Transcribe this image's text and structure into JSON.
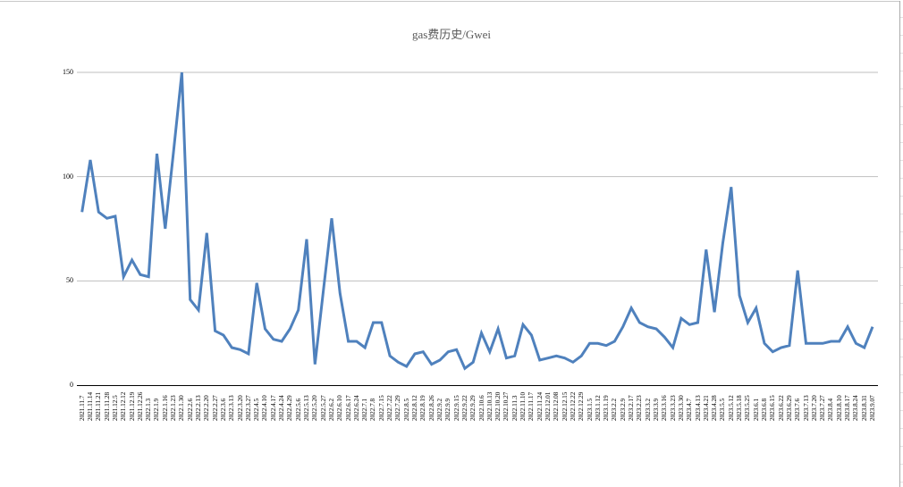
{
  "chart_data": {
    "type": "line",
    "title": "gas费历史/Gwei",
    "xlabel": "",
    "ylabel": "",
    "ylim": [
      0,
      150
    ],
    "yticks": [
      0,
      50,
      100,
      150
    ],
    "grid": true,
    "legend": "none",
    "line_color": "#4f81bd",
    "categories": [
      "2021.11.7",
      "2021.11.14",
      "2021.11.21",
      "2021.11.28",
      "2021.12.5",
      "2021.12.12",
      "2021.12.19",
      "2021.12.26",
      "2022.1.3",
      "2022.1.9",
      "2022.1.16",
      "2022.1.23",
      "2022.1.30",
      "2022.2.6",
      "2022.2.13",
      "2022.2.20",
      "2022.2.27",
      "2022.3.6",
      "2022.3.13",
      "2022.3.20",
      "2022.3.27",
      "2022.4.5",
      "2022.4.10",
      "2022.4.17",
      "2022.4.24",
      "2022.4.29",
      "2022.5.6",
      "2022.5.13",
      "2022.5.20",
      "2022.5.27",
      "2022.6.2",
      "2022.6.10",
      "2022.6.17",
      "2022.6.24",
      "2022.7.1",
      "2022.7.8",
      "2022.7.15",
      "2022.7.22",
      "2022.7.29",
      "2022.8.5",
      "2022.8.12",
      "2022.8.19",
      "2022.8.26",
      "2022.9.2",
      "2022.9.9",
      "2022.9.15",
      "2022.9.22",
      "2022.9.29",
      "2022.10.6",
      "2022.10.13",
      "2022.10.20",
      "2022.10.27",
      "2022.11.3",
      "2022.11.10",
      "2022.11.17",
      "2022.11.24",
      "2022.12.01",
      "2022.12.08",
      "2022.12.15",
      "2022.12.22",
      "2022.12.29",
      "2023.1.5",
      "2023.1.12",
      "2023.1.19",
      "2023.2.2",
      "2023.2.9",
      "2023.2.17",
      "2023.2.23",
      "2023.3.2",
      "2023.3.9",
      "2023.3.16",
      "2023.3.23",
      "2023.3.30",
      "2023.4.7",
      "2023.4.13",
      "2023.4.21",
      "2023.4.28",
      "2023.5.5",
      "2023.5.12",
      "2023.5.18",
      "2023.5.25",
      "2023.6.1",
      "2023.6.8",
      "2023.6.15",
      "2023.6.22",
      "2023.6.29",
      "2023.7.6",
      "2023.7.13",
      "2023.7.20",
      "2023.7.27",
      "2023.8.4",
      "2023.8.10",
      "2023.8.17",
      "2023.8.24",
      "2023.8.31",
      "2023.9.07"
    ],
    "series": [
      {
        "name": "gas费",
        "values": [
          83,
          108,
          83,
          80,
          81,
          52,
          60,
          53,
          52,
          111,
          75,
          112,
          150,
          41,
          36,
          73,
          26,
          24,
          18,
          17,
          15,
          49,
          27,
          22,
          21,
          27,
          36,
          70,
          10,
          45,
          80,
          44,
          21,
          21,
          18,
          30,
          30,
          14,
          11,
          9,
          15,
          16,
          10,
          12,
          16,
          17,
          8,
          11,
          25,
          16,
          27,
          13,
          14,
          29,
          24,
          12,
          13,
          14,
          13,
          11,
          14,
          20,
          20,
          19,
          21,
          28,
          37,
          30,
          28,
          27,
          23,
          18,
          32,
          29,
          30,
          65,
          35,
          68,
          95,
          43,
          30,
          37,
          20,
          16,
          18,
          19,
          55,
          20,
          20,
          20,
          21,
          21,
          28,
          20,
          18,
          28
        ]
      }
    ]
  }
}
